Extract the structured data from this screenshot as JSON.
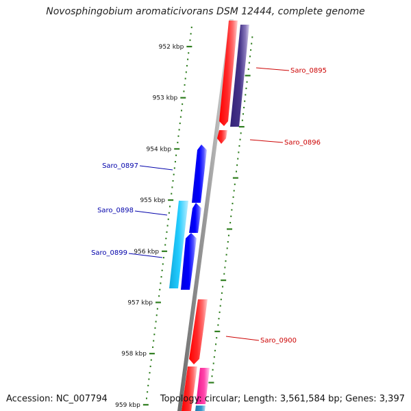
{
  "title": "Novosphingobium aromaticivorans DSM 12444, complete genome",
  "footer": {
    "accession": "Accession: NC_007794",
    "summary": "Topology: circular; Length: 3,561,584 bp; Genes: 3,397"
  },
  "ticks": [
    "952 kbp",
    "953 kbp",
    "954 kbp",
    "955 kbp",
    "956 kbp",
    "957 kbp",
    "958 kbp",
    "959 kbp"
  ],
  "genes": [
    {
      "name": "Saro_0895",
      "color": "#cc0000"
    },
    {
      "name": "Saro_0896",
      "color": "#cc0000"
    },
    {
      "name": "Saro_0897",
      "color": "#0000aa"
    },
    {
      "name": "Saro_0898",
      "color": "#0000aa"
    },
    {
      "name": "Saro_0899",
      "color": "#0000aa"
    },
    {
      "name": "Saro_0900",
      "color": "#cc0000"
    }
  ],
  "colors": {
    "red": "#ff0000",
    "dark_red": "#cc0000",
    "blue": "#0000ee",
    "cyan": "#22ccee",
    "purple": "#443388",
    "pink": "#ff2299",
    "steel": "#3388bb",
    "tick_green": "#2e7d1e",
    "backbone": "#808080"
  }
}
